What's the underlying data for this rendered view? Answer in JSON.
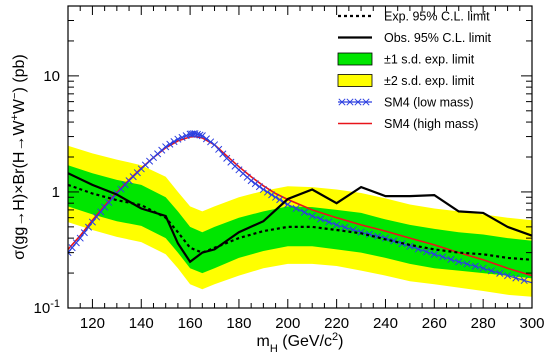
{
  "chart_data": {
    "type": "line",
    "title": "",
    "xlabel": "m_H (GeV/c^2)",
    "ylabel": "σ(gg→H)×Br(H→W+W−) (pb)",
    "xlim": [
      110,
      300
    ],
    "ylim": [
      0.1,
      40
    ],
    "yscale": "log",
    "grid": false,
    "legend_position": "top-right",
    "x_ticks": [
      120,
      140,
      160,
      180,
      200,
      220,
      240,
      260,
      280,
      300
    ],
    "y_ticks": [
      {
        "value": 0.1,
        "base": "10",
        "exp": "-1"
      },
      {
        "value": 1,
        "base": "1",
        "exp": ""
      },
      {
        "value": 10,
        "base": "10",
        "exp": ""
      }
    ],
    "colors": {
      "band1": "#00e600",
      "band2": "#ffff00",
      "expected": "#000000",
      "observed": "#000000",
      "sm4_low": "#2c3fe0",
      "sm4_high": "#e8141a"
    },
    "legend": [
      {
        "key": "expected",
        "label": "Exp. 95% C.L. limit"
      },
      {
        "key": "observed",
        "label": "Obs. 95% C.L. limit"
      },
      {
        "key": "band1",
        "label": "±1 s.d. exp. limit"
      },
      {
        "key": "band2",
        "label": "±2 s.d. exp. limit"
      },
      {
        "key": "sm4_low",
        "label": "SM4 (low mass)"
      },
      {
        "key": "sm4_high",
        "label": "SM4 (high mass)"
      }
    ],
    "x": [
      110,
      120,
      130,
      140,
      150,
      155,
      160,
      165,
      170,
      180,
      190,
      200,
      210,
      220,
      230,
      240,
      250,
      260,
      270,
      280,
      290,
      300
    ],
    "series": [
      {
        "name": "Exp. 95% C.L. limit",
        "key": "expected",
        "values": [
          1.15,
          0.97,
          0.85,
          0.77,
          0.6,
          0.45,
          0.33,
          0.3,
          0.33,
          0.4,
          0.46,
          0.5,
          0.5,
          0.47,
          0.44,
          0.39,
          0.35,
          0.32,
          0.3,
          0.29,
          0.27,
          0.26
        ]
      },
      {
        "name": "Obs. 95% C.L. limit",
        "key": "observed",
        "values": [
          1.45,
          1.15,
          0.95,
          0.72,
          0.62,
          0.36,
          0.25,
          0.3,
          0.32,
          0.45,
          0.56,
          0.87,
          1.05,
          0.8,
          1.1,
          0.92,
          0.92,
          0.94,
          0.68,
          0.66,
          0.5,
          0.42
        ]
      },
      {
        "name": "±1 s.d. exp. limit",
        "key": "band1",
        "lower": [
          0.75,
          0.64,
          0.56,
          0.51,
          0.4,
          0.3,
          0.22,
          0.2,
          0.22,
          0.27,
          0.31,
          0.34,
          0.34,
          0.32,
          0.3,
          0.27,
          0.24,
          0.22,
          0.21,
          0.2,
          0.19,
          0.18
        ],
        "upper": [
          1.7,
          1.45,
          1.27,
          1.15,
          0.9,
          0.68,
          0.5,
          0.45,
          0.5,
          0.6,
          0.68,
          0.75,
          0.74,
          0.7,
          0.66,
          0.58,
          0.52,
          0.48,
          0.45,
          0.43,
          0.4,
          0.38
        ]
      },
      {
        "name": "±2 s.d. exp. limit",
        "key": "band2",
        "lower": [
          0.55,
          0.47,
          0.41,
          0.37,
          0.29,
          0.22,
          0.16,
          0.145,
          0.16,
          0.19,
          0.22,
          0.24,
          0.24,
          0.23,
          0.21,
          0.19,
          0.17,
          0.16,
          0.15,
          0.14,
          0.13,
          0.125
        ],
        "upper": [
          2.5,
          2.15,
          1.9,
          1.7,
          1.35,
          1.0,
          0.75,
          0.68,
          0.75,
          0.9,
          1.02,
          1.12,
          1.1,
          1.05,
          0.98,
          0.88,
          0.78,
          0.72,
          0.68,
          0.64,
          0.6,
          0.57
        ]
      }
    ],
    "sm4": {
      "x": [
        110,
        115,
        120,
        125,
        130,
        135,
        140,
        145,
        150,
        155,
        160,
        162,
        165,
        170,
        175,
        180,
        185,
        190,
        195,
        200,
        210,
        220,
        230,
        240,
        250,
        260,
        270,
        280,
        290,
        300
      ],
      "low_mass": [
        0.3,
        0.4,
        0.55,
        0.74,
        0.97,
        1.25,
        1.58,
        1.98,
        2.45,
        2.85,
        3.15,
        3.18,
        3.05,
        2.55,
        1.95,
        1.55,
        1.25,
        1.05,
        0.9,
        0.78,
        0.62,
        0.52,
        0.45,
        0.4,
        0.34,
        0.29,
        0.25,
        0.22,
        0.19,
        0.165
      ],
      "high_mass": [
        0.32,
        0.42,
        0.57,
        0.76,
        0.99,
        1.27,
        1.6,
        1.98,
        2.4,
        2.75,
        2.98,
        3.0,
        2.92,
        2.55,
        2.05,
        1.65,
        1.35,
        1.13,
        0.97,
        0.86,
        0.7,
        0.6,
        0.52,
        0.46,
        0.4,
        0.35,
        0.3,
        0.26,
        0.22,
        0.19
      ]
    }
  }
}
